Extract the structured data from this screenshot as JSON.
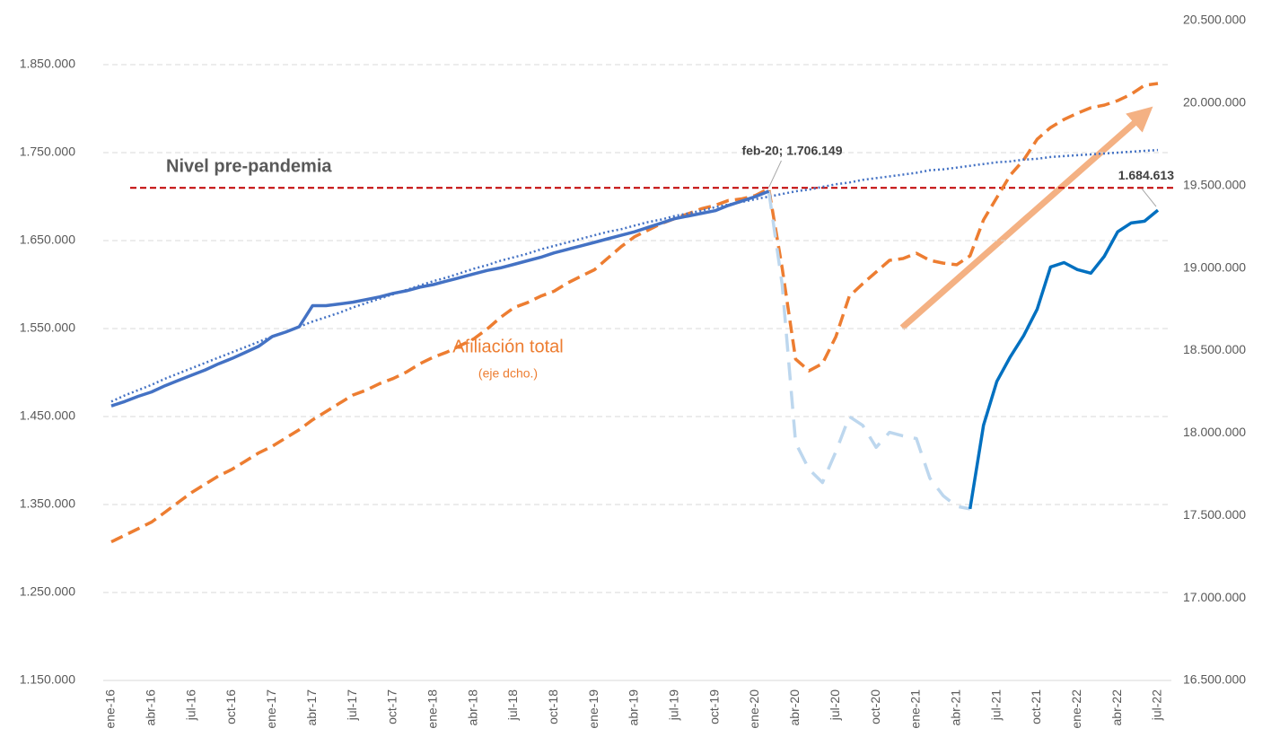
{
  "chart_data": {
    "type": "line",
    "categories": [
      "ene-16",
      null,
      null,
      "abr-16",
      null,
      null,
      "jul-16",
      null,
      null,
      "oct-16",
      null,
      null,
      "ene-17",
      null,
      null,
      "abr-17",
      null,
      null,
      "jul-17",
      null,
      null,
      "oct-17",
      null,
      null,
      "ene-18",
      null,
      null,
      "abr-18",
      null,
      null,
      "jul-18",
      null,
      null,
      "oct-18",
      null,
      null,
      "ene-19",
      null,
      null,
      "abr-19",
      null,
      null,
      "jul-19",
      null,
      null,
      "oct-19",
      null,
      null,
      "ene-20",
      null,
      null,
      "abr-20",
      null,
      null,
      "jul-20",
      null,
      null,
      "oct-20",
      null,
      null,
      "ene-21",
      null,
      null,
      "abr-21",
      null,
      null,
      "jul-21",
      null,
      null,
      "oct-21",
      null,
      null,
      "ene-22",
      null,
      null,
      "abr-22",
      null,
      null,
      "jul-22"
    ],
    "ylim": [
      1150000,
      1900000
    ],
    "yticks": [
      {
        "value": 1150000,
        "label": "1.150.000"
      },
      {
        "value": 1250000,
        "label": "1.250.000"
      },
      {
        "value": 1350000,
        "label": "1.350.000"
      },
      {
        "value": 1450000,
        "label": "1.450.000"
      },
      {
        "value": 1550000,
        "label": "1.550.000"
      },
      {
        "value": 1650000,
        "label": "1.650.000"
      },
      {
        "value": 1750000,
        "label": "1.750.000"
      },
      {
        "value": 1850000,
        "label": "1.850.000"
      }
    ],
    "y2lim": [
      16500000,
      20500000
    ],
    "y2ticks": [
      {
        "value": 16500000,
        "label": "16.500.000"
      },
      {
        "value": 17000000,
        "label": "17.000.000"
      },
      {
        "value": 17500000,
        "label": "17.500.000"
      },
      {
        "value": 18000000,
        "label": "18.000.000"
      },
      {
        "value": 18500000,
        "label": "18.500.000"
      },
      {
        "value": 19000000,
        "label": "19.000.000"
      },
      {
        "value": 19500000,
        "label": "19.500.000"
      },
      {
        "value": 20000000,
        "label": "20.000.000"
      },
      {
        "value": 20500000,
        "label": "20.500.000"
      }
    ],
    "grid": true,
    "series": [
      {
        "color": "#4472c4",
        "style": "solid",
        "axis": "y",
        "values": [
          1462000,
          1467000,
          1473000,
          1478000,
          1485000,
          1491000,
          1497000,
          1503000,
          1510000,
          1516000,
          1523000,
          1530000,
          1541000,
          1546000,
          1552000,
          1576000,
          1576000,
          1578000,
          1580000,
          1583000,
          1586000,
          1590000,
          1593000,
          1597000,
          1600000,
          1604000,
          1608000,
          1612000,
          1616000,
          1619000,
          1623000,
          1627000,
          1631000,
          1636000,
          1640000,
          1644000,
          1648000,
          1652000,
          1656000,
          1660000,
          1665000,
          1670000,
          1675000,
          1678000,
          1681000,
          1684000,
          1690000,
          1695000,
          1700000,
          1706149,
          null,
          null,
          null,
          null,
          null,
          null,
          null,
          null,
          null,
          null,
          null,
          null,
          null,
          null,
          null,
          null,
          null,
          null,
          null,
          null,
          null,
          null,
          null,
          null,
          null,
          null,
          null,
          null,
          null
        ],
        "value_labels": {
          "49": "feb-20; 1.706.149"
        }
      },
      {
        "color": "#bdd7ee",
        "style": "dashed",
        "axis": "y",
        "values": [
          null,
          null,
          null,
          null,
          null,
          null,
          null,
          null,
          null,
          null,
          null,
          null,
          null,
          null,
          null,
          null,
          null,
          null,
          null,
          null,
          null,
          null,
          null,
          null,
          null,
          null,
          null,
          null,
          null,
          null,
          null,
          null,
          null,
          null,
          null,
          null,
          null,
          null,
          null,
          null,
          null,
          null,
          null,
          null,
          null,
          null,
          null,
          null,
          null,
          1706149,
          1600000,
          1420000,
          1390000,
          1375000,
          1410000,
          1450000,
          1440000,
          1415000,
          1432000,
          1428000,
          1425000,
          1380000,
          1360000,
          1348000,
          1345000,
          null,
          null,
          null,
          null,
          null,
          null,
          null,
          null,
          null,
          null,
          null,
          null,
          null,
          null
        ]
      },
      {
        "color": "#0070c0",
        "style": "solid",
        "axis": "y",
        "values": [
          null,
          null,
          null,
          null,
          null,
          null,
          null,
          null,
          null,
          null,
          null,
          null,
          null,
          null,
          null,
          null,
          null,
          null,
          null,
          null,
          null,
          null,
          null,
          null,
          null,
          null,
          null,
          null,
          null,
          null,
          null,
          null,
          null,
          null,
          null,
          null,
          null,
          null,
          null,
          null,
          null,
          null,
          null,
          null,
          null,
          null,
          null,
          null,
          null,
          null,
          null,
          null,
          null,
          null,
          null,
          null,
          null,
          null,
          null,
          null,
          null,
          null,
          null,
          null,
          1345000,
          1440000,
          1490000,
          1518000,
          1542000,
          1572000,
          1620000,
          1625000,
          1617000,
          1613000,
          1632000,
          1660000,
          1670000,
          1672000,
          1684613
        ],
        "value_labels": {
          "78": "1.684.613"
        }
      },
      {
        "color": "#4472c4",
        "style": "dotted",
        "axis": "y",
        "values": [
          1467000,
          1474000,
          1480000,
          1486000,
          1493000,
          1499000,
          1505000,
          1511000,
          1517000,
          1523000,
          1529000,
          1535000,
          1541000,
          1546000,
          1552000,
          1558000,
          1563000,
          1568000,
          1574000,
          1579000,
          1584000,
          1589000,
          1594000,
          1599000,
          1604000,
          1608000,
          1613000,
          1618000,
          1622000,
          1627000,
          1631000,
          1635000,
          1640000,
          1644000,
          1648000,
          1652000,
          1656000,
          1660000,
          1663000,
          1667000,
          1671000,
          1674000,
          1678000,
          1681000,
          1684000,
          1688000,
          1691000,
          1694000,
          1697000,
          1700000,
          1703000,
          1706000,
          1708000,
          1711000,
          1714000,
          1716000,
          1719000,
          1721000,
          1723000,
          1725000,
          1727000,
          1730000,
          1731000,
          1733000,
          1735000,
          1737000,
          1739000,
          1740000,
          1742000,
          1743000,
          1745000,
          1746000,
          1747000,
          1748000,
          1749000,
          1750000,
          1751000,
          1752000,
          1753000
        ]
      },
      {
        "color": "#ed7d31",
        "style": "dashed",
        "axis": "y2",
        "values": [
          17340000,
          17380000,
          17420000,
          17460000,
          17520000,
          17580000,
          17640000,
          17690000,
          17740000,
          17780000,
          17830000,
          17880000,
          17920000,
          17970000,
          18020000,
          18080000,
          18130000,
          18180000,
          18230000,
          18260000,
          18300000,
          18330000,
          18370000,
          18420000,
          18460000,
          18490000,
          18530000,
          18570000,
          18630000,
          18700000,
          18760000,
          18790000,
          18830000,
          18860000,
          18910000,
          18950000,
          18990000,
          19060000,
          19130000,
          19190000,
          19230000,
          19270000,
          19300000,
          19330000,
          19360000,
          19380000,
          19410000,
          19420000,
          19440000,
          19482000,
          19000000,
          18448000,
          18377000,
          18421000,
          18584000,
          18829000,
          18905000,
          18976000,
          19047000,
          19058000,
          19090000,
          19047000,
          19030000,
          19020000,
          19074000,
          19292000,
          19428000,
          19564000,
          19656000,
          19781000,
          19852000,
          19901000,
          19939000,
          19972000,
          19988000,
          20015000,
          20054000,
          20108000,
          20119000
        ]
      }
    ],
    "reference_lines": [
      {
        "label": "Nivel pre-pandemia",
        "value": 1710000,
        "color": "#c00000"
      }
    ],
    "annotations": [
      {
        "text": "Afiliación total"
      },
      {
        "text": "(eje dcho.)"
      }
    ]
  }
}
